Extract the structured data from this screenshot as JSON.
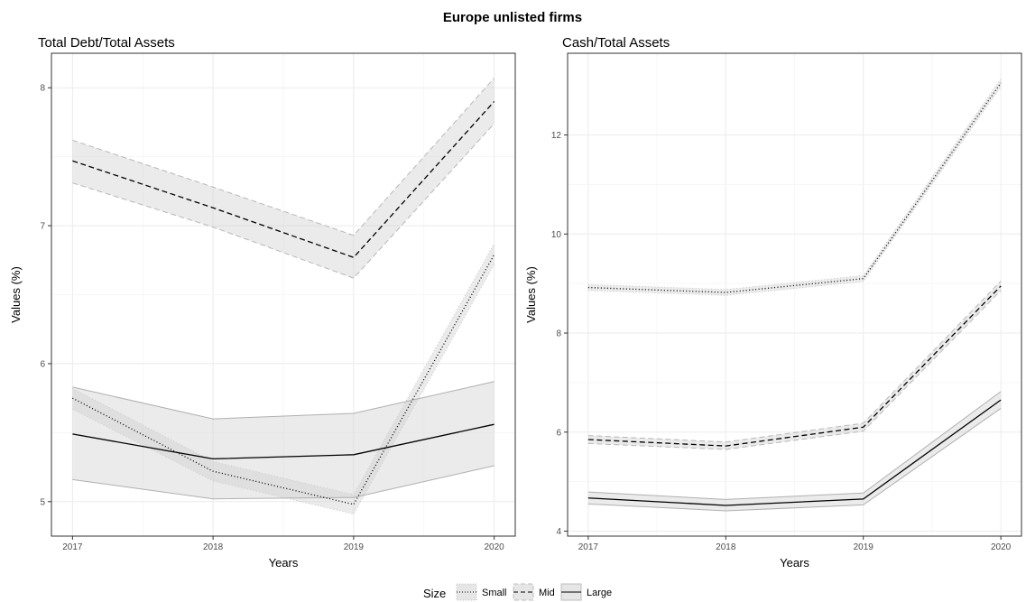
{
  "figure": {
    "title": "Europe unlisted firms"
  },
  "legend": {
    "title": "Size",
    "entries": [
      "Small",
      "Mid",
      "Large"
    ]
  },
  "chart_data": [
    {
      "type": "line",
      "title": "Total Debt/Total Assets",
      "xlabel": "Years",
      "ylabel": "Values (%)",
      "x": [
        2017,
        2018,
        2019,
        2020
      ],
      "xlim": [
        2016.85,
        2020.15
      ],
      "ylim": [
        4.75,
        8.25
      ],
      "yticks": [
        5,
        6,
        7,
        8
      ],
      "xticks": [
        2017,
        2018,
        2019,
        2020
      ],
      "grid": true,
      "series": [
        {
          "name": "Small",
          "values": [
            5.75,
            5.22,
            4.98,
            6.79
          ],
          "lower": [
            5.67,
            5.15,
            4.91,
            6.72
          ],
          "upper": [
            5.82,
            5.29,
            5.05,
            6.87
          ]
        },
        {
          "name": "Mid",
          "values": [
            7.47,
            7.13,
            6.77,
            7.9
          ],
          "lower": [
            7.31,
            6.99,
            6.62,
            7.74
          ],
          "upper": [
            7.62,
            7.28,
            6.93,
            8.07
          ]
        },
        {
          "name": "Large",
          "values": [
            5.49,
            5.31,
            5.34,
            5.56
          ],
          "lower": [
            5.16,
            5.02,
            5.03,
            5.26
          ],
          "upper": [
            5.83,
            5.6,
            5.64,
            5.87
          ]
        }
      ]
    },
    {
      "type": "line",
      "title": "Cash/Total Assets",
      "xlabel": "Years",
      "ylabel": "Values (%)",
      "x": [
        2017,
        2018,
        2019,
        2020
      ],
      "xlim": [
        2016.85,
        2020.15
      ],
      "ylim": [
        3.9,
        13.65
      ],
      "yticks": [
        4,
        6,
        8,
        10,
        12
      ],
      "xticks": [
        2017,
        2018,
        2019,
        2020
      ],
      "grid": true,
      "series": [
        {
          "name": "Small",
          "values": [
            8.92,
            8.82,
            9.1,
            13.05
          ],
          "lower": [
            8.86,
            8.76,
            9.04,
            12.97
          ],
          "upper": [
            8.98,
            8.88,
            9.16,
            13.13
          ]
        },
        {
          "name": "Mid",
          "values": [
            5.85,
            5.72,
            6.1,
            8.95
          ],
          "lower": [
            5.77,
            5.65,
            6.02,
            8.86
          ],
          "upper": [
            5.93,
            5.8,
            6.18,
            9.05
          ]
        },
        {
          "name": "Large",
          "values": [
            4.67,
            4.52,
            4.65,
            6.65
          ],
          "lower": [
            4.55,
            4.41,
            4.53,
            6.48
          ],
          "upper": [
            4.79,
            4.64,
            4.77,
            6.82
          ]
        }
      ]
    }
  ]
}
